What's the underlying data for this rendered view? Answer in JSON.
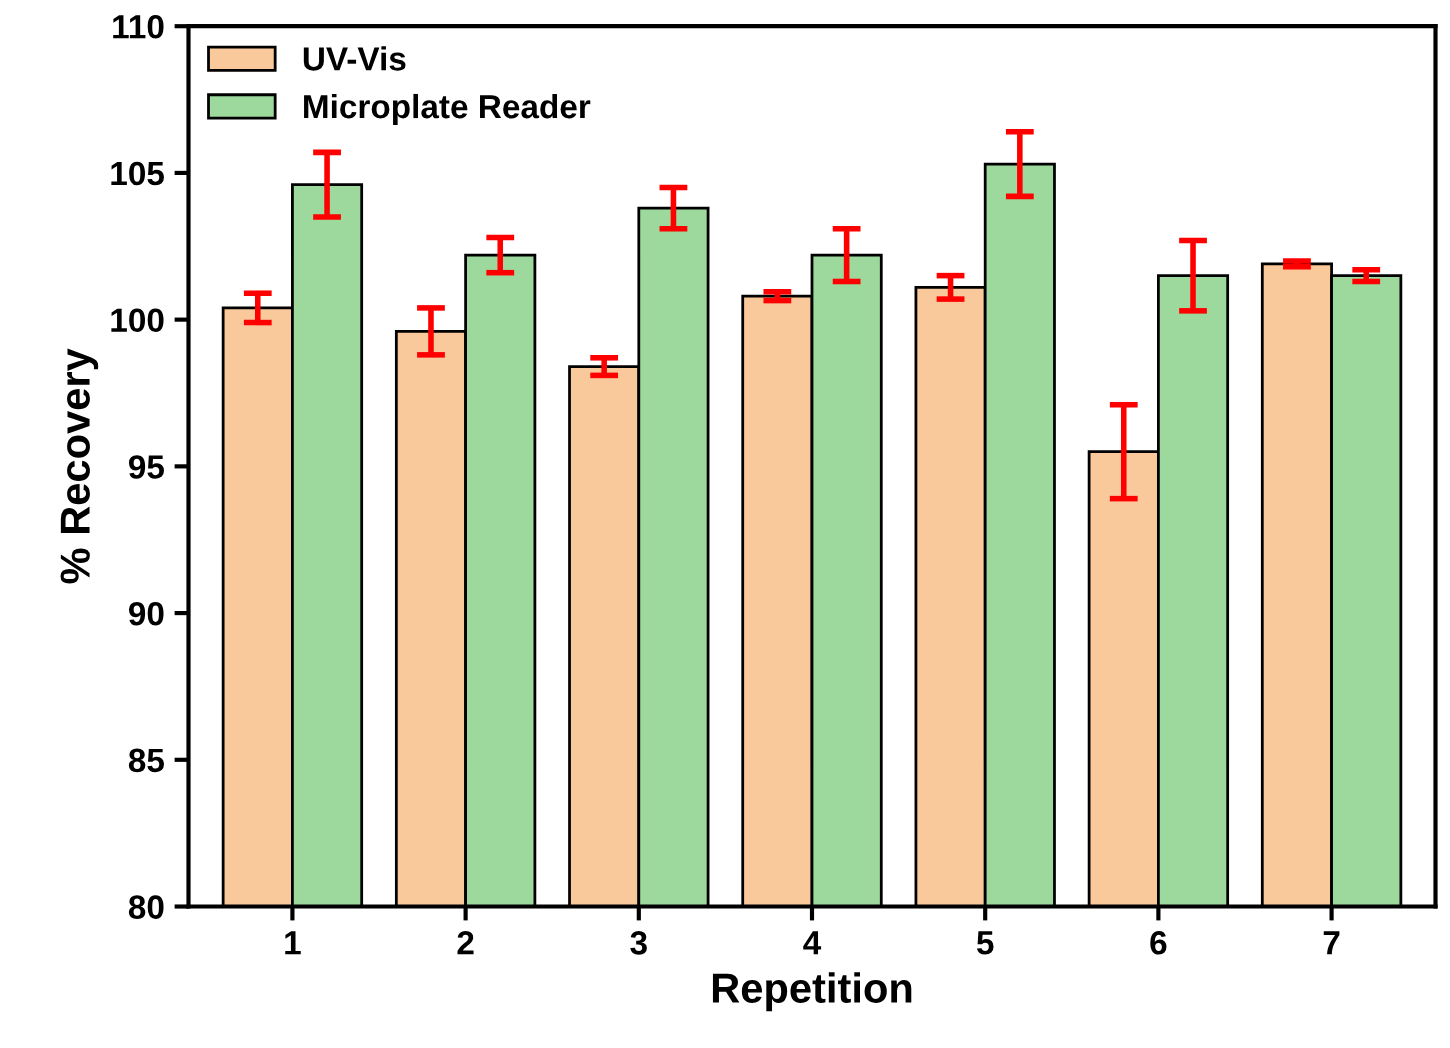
{
  "chart_data": {
    "type": "bar",
    "xlabel": "Repetition",
    "ylabel": "% Recovery",
    "categories": [
      "1",
      "2",
      "3",
      "4",
      "5",
      "6",
      "7"
    ],
    "series": [
      {
        "name": "UV-Vis",
        "color": "#f9c89b",
        "values": [
          100.4,
          99.6,
          98.4,
          100.8,
          101.1,
          95.5,
          101.9
        ],
        "errors": [
          0.5,
          0.8,
          0.3,
          0.15,
          0.4,
          1.6,
          0.1
        ]
      },
      {
        "name": "Microplate Reader",
        "color": "#9dd89d",
        "values": [
          104.6,
          102.2,
          103.8,
          102.2,
          105.3,
          101.5,
          101.5
        ],
        "errors": [
          1.1,
          0.6,
          0.7,
          0.9,
          1.1,
          1.2,
          0.2
        ]
      }
    ],
    "ylim": [
      80,
      110
    ],
    "yticks": [
      80,
      85,
      90,
      95,
      100,
      105,
      110
    ],
    "grid": false,
    "legend": "top left"
  }
}
